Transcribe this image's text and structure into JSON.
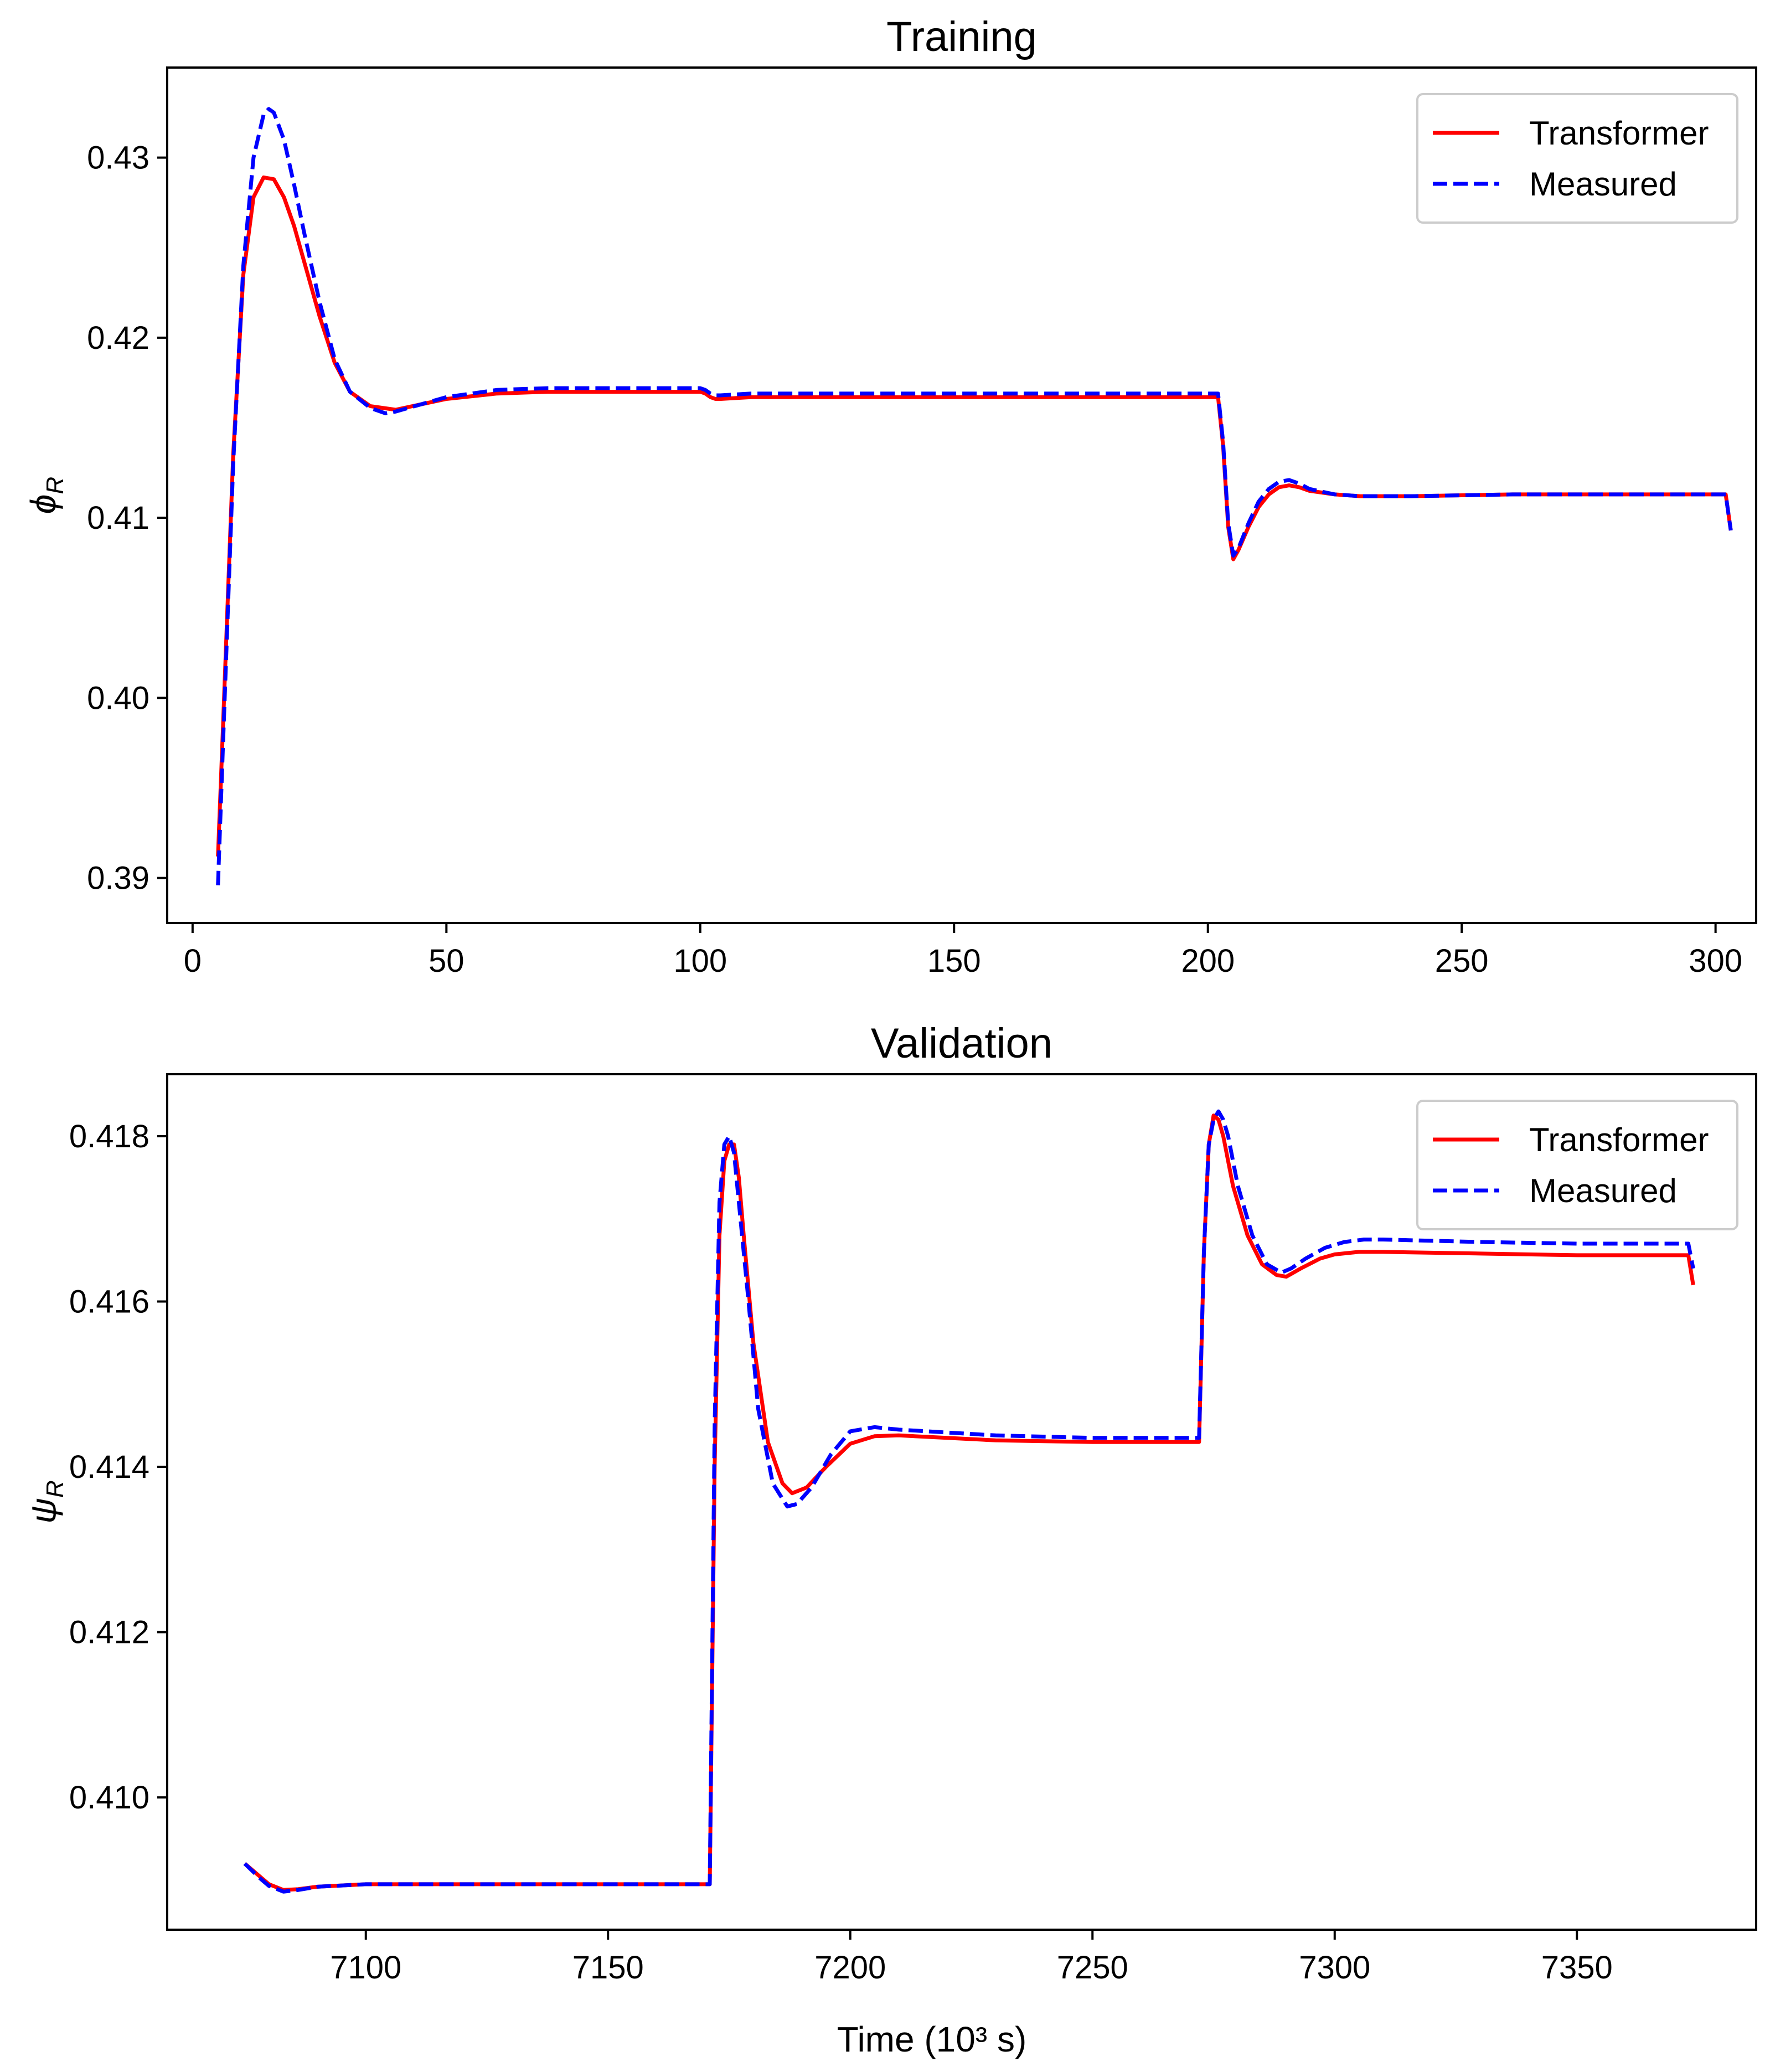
{
  "figure": {
    "xlabel": "Time (10³ s)"
  },
  "colors": {
    "transformer": "#ff0000",
    "measured": "#0000ff",
    "axes": "#000000",
    "background": "#ffffff"
  },
  "chart_data": [
    {
      "type": "line",
      "title": "Training",
      "ylabel_symbol": "ϕ",
      "ylabel_subscript": "R",
      "xlim": [
        -5,
        308
      ],
      "ylim": [
        0.3875,
        0.435
      ],
      "xticks": [
        0,
        50,
        100,
        150,
        200,
        250,
        300
      ],
      "xtick_labels": [
        "0",
        "50",
        "100",
        "150",
        "200",
        "250",
        "300"
      ],
      "yticks": [
        0.39,
        0.4,
        0.41,
        0.42,
        0.43
      ],
      "ytick_labels": [
        "0.39",
        "0.40",
        "0.41",
        "0.42",
        "0.43"
      ],
      "legend": {
        "location": "top-right",
        "entries": [
          "Transformer",
          "Measured"
        ]
      },
      "series": [
        {
          "name": "Transformer",
          "style": "solid",
          "x": [
            5,
            6,
            8,
            10,
            12,
            14,
            16,
            18,
            20,
            22,
            25,
            28,
            31,
            35,
            40,
            45,
            50,
            60,
            70,
            80,
            90,
            100,
            101,
            102,
            103,
            104,
            110,
            150,
            200,
            202,
            203,
            204,
            205,
            206,
            208,
            210,
            212,
            214,
            216,
            218,
            220,
            225,
            230,
            240,
            260,
            280,
            300,
            302,
            303
          ],
          "y": [
            0.3912,
            0.3985,
            0.4135,
            0.4235,
            0.4278,
            0.4289,
            0.4288,
            0.4278,
            0.4262,
            0.4242,
            0.4212,
            0.4186,
            0.417,
            0.4162,
            0.416,
            0.4163,
            0.4166,
            0.4169,
            0.417,
            0.417,
            0.417,
            0.417,
            0.4169,
            0.4167,
            0.4166,
            0.4166,
            0.4167,
            0.4167,
            0.4167,
            0.4167,
            0.414,
            0.4095,
            0.4077,
            0.4082,
            0.4095,
            0.4106,
            0.4113,
            0.4117,
            0.4118,
            0.4117,
            0.4115,
            0.4113,
            0.4112,
            0.4112,
            0.4113,
            0.4113,
            0.4113,
            0.4113,
            0.4093
          ]
        },
        {
          "name": "Measured",
          "style": "dashed",
          "x": [
            5,
            6,
            8,
            10,
            12,
            14,
            15,
            16,
            18,
            20,
            22,
            25,
            28,
            31,
            35,
            38,
            40,
            45,
            50,
            60,
            70,
            80,
            90,
            100,
            101,
            102,
            103,
            104,
            110,
            150,
            200,
            202,
            203,
            204,
            205,
            206,
            208,
            210,
            212,
            214,
            216,
            218,
            220,
            225,
            230,
            240,
            260,
            280,
            300,
            302,
            303
          ],
          "y": [
            0.3896,
            0.3975,
            0.413,
            0.424,
            0.43,
            0.4324,
            0.4327,
            0.4325,
            0.431,
            0.4285,
            0.4258,
            0.422,
            0.4188,
            0.417,
            0.4161,
            0.4158,
            0.4159,
            0.4163,
            0.4167,
            0.4171,
            0.4172,
            0.4172,
            0.4172,
            0.4172,
            0.4171,
            0.4169,
            0.4168,
            0.4168,
            0.4169,
            0.4169,
            0.4169,
            0.4169,
            0.4142,
            0.4097,
            0.4079,
            0.4083,
            0.4097,
            0.4109,
            0.4116,
            0.412,
            0.4121,
            0.4119,
            0.4116,
            0.4113,
            0.4112,
            0.4112,
            0.4113,
            0.4113,
            0.4113,
            0.4113,
            0.4093
          ]
        }
      ]
    },
    {
      "type": "line",
      "title": "Validation",
      "ylabel_symbol": "ψ",
      "ylabel_subscript": "R",
      "xlim": [
        7059,
        7387
      ],
      "ylim": [
        0.4084,
        0.41875
      ],
      "xticks": [
        7100,
        7150,
        7200,
        7250,
        7300,
        7350
      ],
      "xtick_labels": [
        "7100",
        "7150",
        "7200",
        "7250",
        "7300",
        "7350"
      ],
      "yticks": [
        0.41,
        0.412,
        0.414,
        0.416,
        0.418
      ],
      "ytick_labels": [
        "0.410",
        "0.412",
        "0.414",
        "0.416",
        "0.418"
      ],
      "legend": {
        "location": "top-right",
        "entries": [
          "Transformer",
          "Measured"
        ]
      },
      "series": [
        {
          "name": "Transformer",
          "style": "solid",
          "x": [
            7075,
            7078,
            7080,
            7083,
            7086,
            7090,
            7100,
            7110,
            7120,
            7150,
            7171,
            7172,
            7173,
            7174,
            7175,
            7176,
            7177,
            7178,
            7180,
            7183,
            7186,
            7188,
            7191,
            7195,
            7200,
            7205,
            7210,
            7230,
            7250,
            7272,
            7273,
            7274,
            7275,
            7276,
            7277,
            7279,
            7282,
            7285,
            7288,
            7290,
            7293,
            7297,
            7300,
            7305,
            7310,
            7330,
            7350,
            7370,
            7373,
            7374
          ],
          "y": [
            0.4092,
            0.40905,
            0.40895,
            0.40888,
            0.40889,
            0.40892,
            0.40895,
            0.40895,
            0.40895,
            0.40895,
            0.40895,
            0.414,
            0.4168,
            0.4177,
            0.4179,
            0.4179,
            0.4175,
            0.4168,
            0.4155,
            0.4143,
            0.4138,
            0.41368,
            0.41375,
            0.414,
            0.41428,
            0.41437,
            0.41438,
            0.41432,
            0.4143,
            0.4143,
            0.4166,
            0.4179,
            0.41825,
            0.4182,
            0.418,
            0.4174,
            0.4168,
            0.41645,
            0.41632,
            0.4163,
            0.4164,
            0.41652,
            0.41657,
            0.4166,
            0.4166,
            0.41658,
            0.41656,
            0.41656,
            0.41656,
            0.4162
          ]
        },
        {
          "name": "Measured",
          "style": "dashed",
          "x": [
            7075,
            7078,
            7080,
            7083,
            7086,
            7090,
            7100,
            7110,
            7120,
            7150,
            7171,
            7172,
            7173,
            7174,
            7175,
            7176,
            7177,
            7179,
            7181,
            7184,
            7187,
            7189,
            7192,
            7196,
            7200,
            7205,
            7210,
            7230,
            7250,
            7272,
            7273,
            7274,
            7275,
            7276,
            7277,
            7278,
            7280,
            7283,
            7286,
            7289,
            7291,
            7294,
            7298,
            7302,
            7306,
            7310,
            7330,
            7350,
            7370,
            7373,
            7374
          ],
          "y": [
            0.4092,
            0.40903,
            0.40893,
            0.40886,
            0.40888,
            0.40892,
            0.40895,
            0.40895,
            0.40895,
            0.40895,
            0.40895,
            0.4145,
            0.4172,
            0.4179,
            0.418,
            0.4178,
            0.4172,
            0.416,
            0.4147,
            0.4138,
            0.41352,
            0.41355,
            0.41375,
            0.41415,
            0.41443,
            0.41448,
            0.41445,
            0.41438,
            0.41435,
            0.41435,
            0.4166,
            0.4179,
            0.4182,
            0.4183,
            0.4182,
            0.418,
            0.4174,
            0.4168,
            0.41645,
            0.41635,
            0.4164,
            0.41652,
            0.41665,
            0.41672,
            0.41675,
            0.41675,
            0.41672,
            0.4167,
            0.4167,
            0.4167,
            0.4164
          ]
        }
      ]
    }
  ]
}
